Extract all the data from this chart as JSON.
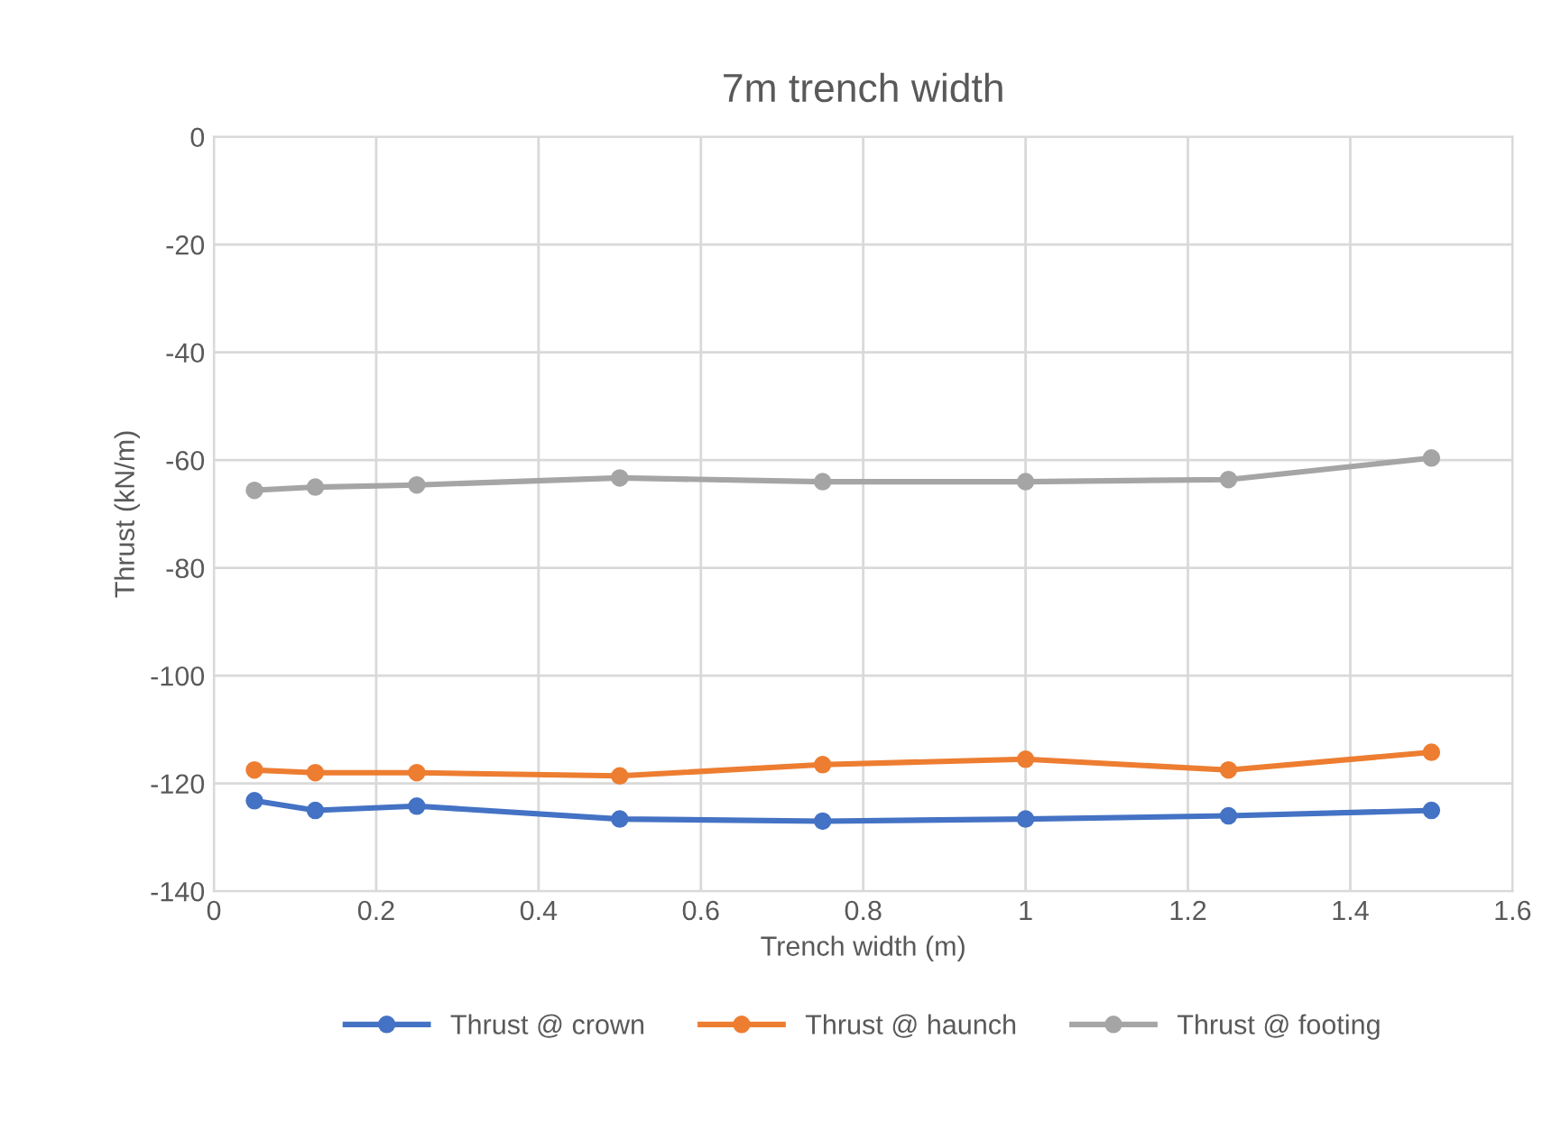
{
  "chart_data": {
    "type": "line",
    "title": "7m trench width",
    "xlabel": "Trench width (m)",
    "ylabel": "Thrust (kN/m)",
    "x": [
      0.05,
      0.125,
      0.25,
      0.5,
      0.75,
      1.0,
      1.25,
      1.5
    ],
    "series": [
      {
        "name": "Thrust @ crown",
        "color": "#4472c4",
        "values": [
          -123.2,
          -125,
          -124.2,
          -126.6,
          -127,
          -126.6,
          -126,
          -125
        ]
      },
      {
        "name": "Thrust @ haunch",
        "color": "#ed7d31",
        "values": [
          -117.5,
          -118,
          -118,
          -118.6,
          -116.5,
          -115.5,
          -117.5,
          -114.2
        ]
      },
      {
        "name": "Thrust @ footing",
        "color": "#a5a5a5",
        "values": [
          -65.6,
          -65,
          -64.6,
          -63.3,
          -64,
          -64,
          -63.6,
          -59.6
        ]
      }
    ],
    "xlim": [
      0,
      1.6
    ],
    "xticks": [
      0,
      0.2,
      0.4,
      0.6,
      0.8,
      1,
      1.2,
      1.4,
      1.6
    ],
    "ylim": [
      -140,
      0
    ],
    "yticks": [
      -140,
      -120,
      -100,
      -80,
      -60,
      -40,
      -20,
      0
    ],
    "grid": true,
    "legend": "bottom",
    "marker": "circle",
    "line_style": "solid"
  }
}
